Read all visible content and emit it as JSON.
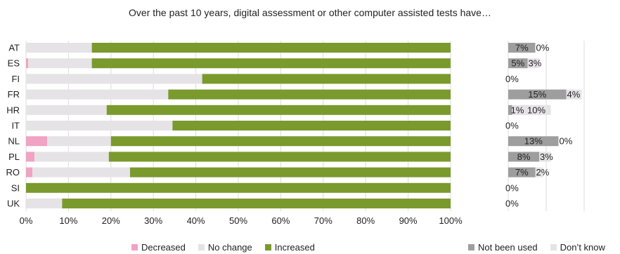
{
  "chart_data": [
    {
      "type": "bar",
      "orientation": "horizontal",
      "stacked": true,
      "title": "Over the past 10 years, digital assessment or other computer assisted tests have…",
      "categories": [
        "AT",
        "ES",
        "FI",
        "FR",
        "HR",
        "IT",
        "NL",
        "PL",
        "RO",
        "SI",
        "UK"
      ],
      "series": [
        {
          "name": "Decreased",
          "color": "#f0a3c4",
          "values": [
            0.0,
            0.5,
            0.0,
            0.0,
            0.0,
            0.0,
            5.0,
            2.0,
            1.5,
            0.0,
            0.0
          ]
        },
        {
          "name": "No change",
          "color": "#e6e3e6",
          "values": [
            15.5,
            15.0,
            41.5,
            33.5,
            19.0,
            34.5,
            15.0,
            17.5,
            23.0,
            0.0,
            8.5
          ]
        },
        {
          "name": "Increased",
          "color": "#7a9a2e",
          "values": [
            84.5,
            84.5,
            58.5,
            66.5,
            81.0,
            65.5,
            80.0,
            80.5,
            75.5,
            100.0,
            91.5
          ]
        }
      ],
      "xlim": [
        0,
        100
      ],
      "x_ticks": [
        "0%",
        "10%",
        "20%",
        "30%",
        "40%",
        "50%",
        "60%",
        "70%",
        "80%",
        "90%",
        "100%"
      ],
      "grid": true,
      "legend_position": "bottom"
    },
    {
      "type": "bar",
      "orientation": "horizontal",
      "categories": [
        "AT",
        "ES",
        "FI",
        "FR",
        "HR",
        "IT",
        "NL",
        "PL",
        "RO",
        "SI",
        "UK"
      ],
      "series": [
        {
          "name": "Not been used",
          "color": "#9e9e9e",
          "values": [
            7,
            5,
            0,
            15,
            1,
            0,
            13,
            8,
            7,
            0,
            0
          ],
          "labels": [
            "7%",
            "5%",
            "0%",
            "15%",
            "1%",
            "0%",
            "13%",
            "8%",
            "7%",
            "0%",
            "0%"
          ]
        },
        {
          "name": "Don’t know",
          "color": "#e6e3e6",
          "values": [
            0,
            3,
            null,
            4,
            10,
            null,
            0,
            3,
            2,
            null,
            null
          ],
          "labels": [
            "0%",
            "3%",
            "",
            "4%",
            "10%",
            "",
            "0%",
            "3%",
            "2%",
            "",
            ""
          ]
        }
      ],
      "grid": true,
      "legend_position": "bottom"
    }
  ]
}
